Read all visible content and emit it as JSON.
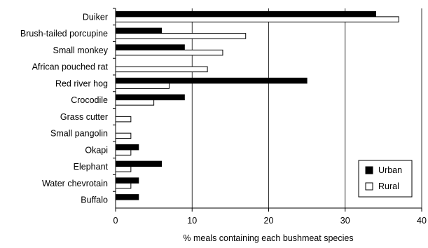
{
  "chart_data": {
    "type": "bar",
    "orientation": "horizontal",
    "title": "",
    "xlabel": "% meals containing each bushmeat species",
    "ylabel": "",
    "xlim": [
      0,
      40
    ],
    "x_ticks": [
      0,
      10,
      20,
      30,
      40
    ],
    "grid": "vertical gridlines at major ticks",
    "legend_position": "bottom-right",
    "categories": [
      "Duiker",
      "Brush-tailed porcupine",
      "Small monkey",
      "African pouched rat",
      "Red river hog",
      "Crocodile",
      "Grass cutter",
      "Small pangolin",
      "Okapi",
      "Elephant",
      "Water chevrotain",
      "Buffalo"
    ],
    "series": [
      {
        "name": "Urban",
        "color": "#000000",
        "values": [
          34,
          6,
          9,
          0,
          25,
          9,
          0,
          0,
          3,
          6,
          3,
          3
        ]
      },
      {
        "name": "Rural",
        "color": "#ffffff",
        "values": [
          37,
          17,
          14,
          12,
          7,
          5,
          2,
          2,
          2,
          2,
          2,
          0
        ]
      }
    ]
  }
}
